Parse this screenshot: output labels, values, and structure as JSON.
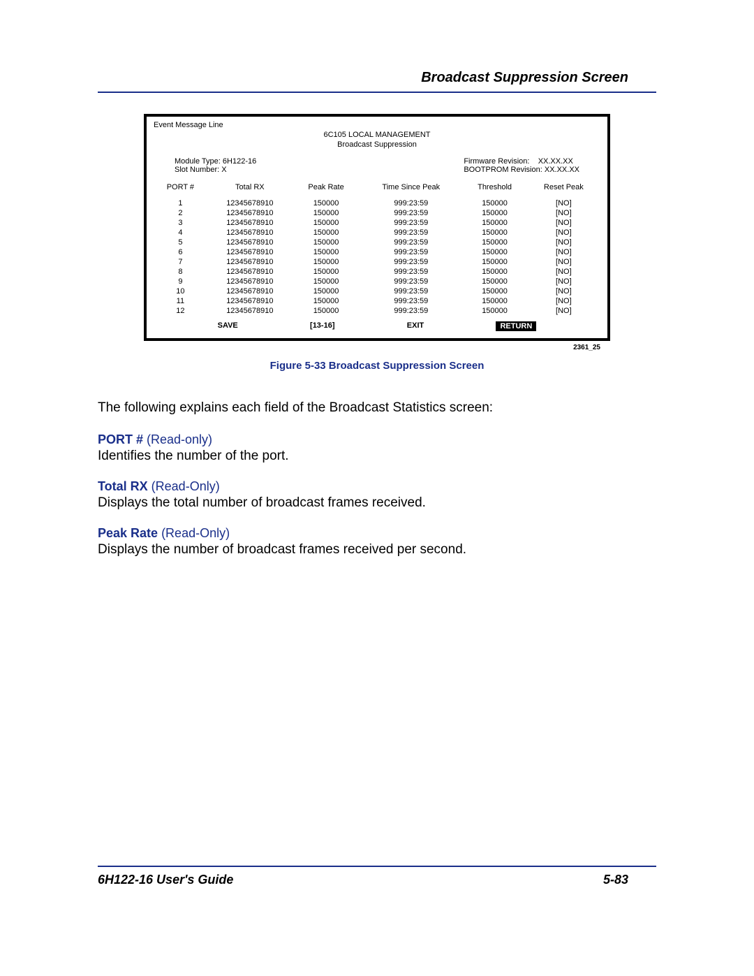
{
  "header": {
    "title": "Broadcast Suppression Screen"
  },
  "screen": {
    "event_line": "Event Message Line",
    "mgmt_title": "6C105 LOCAL MANAGEMENT",
    "subtitle": "Broadcast Suppression",
    "module_type_label": "Module Type:",
    "module_type_value": "6H122-16",
    "slot_label": "Slot Number:",
    "slot_value": "X",
    "fw_label": "Firmware Revision:",
    "fw_value": "XX.XX.XX",
    "boot_label": "BOOTPROM Revision:",
    "boot_value": "XX.XX.XX",
    "columns": [
      "PORT #",
      "Total RX",
      "Peak Rate",
      "Time Since Peak",
      "Threshold",
      "Reset Peak"
    ],
    "rows": [
      {
        "port": "1",
        "total": "12345678910",
        "peak": "150000",
        "time": "999:23:59",
        "thresh": "150000",
        "reset": "[NO]"
      },
      {
        "port": "2",
        "total": "12345678910",
        "peak": "150000",
        "time": "999:23:59",
        "thresh": "150000",
        "reset": "[NO]"
      },
      {
        "port": "3",
        "total": "12345678910",
        "peak": "150000",
        "time": "999:23:59",
        "thresh": "150000",
        "reset": "[NO]"
      },
      {
        "port": "4",
        "total": "12345678910",
        "peak": "150000",
        "time": "999:23:59",
        "thresh": "150000",
        "reset": "[NO]"
      },
      {
        "port": "5",
        "total": "12345678910",
        "peak": "150000",
        "time": "999:23:59",
        "thresh": "150000",
        "reset": "[NO]"
      },
      {
        "port": "6",
        "total": "12345678910",
        "peak": "150000",
        "time": "999:23:59",
        "thresh": "150000",
        "reset": "[NO]"
      },
      {
        "port": "7",
        "total": "12345678910",
        "peak": "150000",
        "time": "999:23:59",
        "thresh": "150000",
        "reset": "[NO]"
      },
      {
        "port": "8",
        "total": "12345678910",
        "peak": "150000",
        "time": "999:23:59",
        "thresh": "150000",
        "reset": "[NO]"
      },
      {
        "port": "9",
        "total": "12345678910",
        "peak": "150000",
        "time": "999:23:59",
        "thresh": "150000",
        "reset": "[NO]"
      },
      {
        "port": "10",
        "total": "12345678910",
        "peak": "150000",
        "time": "999:23:59",
        "thresh": "150000",
        "reset": "[NO]"
      },
      {
        "port": "11",
        "total": "12345678910",
        "peak": "150000",
        "time": "999:23:59",
        "thresh": "150000",
        "reset": "[NO]"
      },
      {
        "port": "12",
        "total": "12345678910",
        "peak": "150000",
        "time": "999:23:59",
        "thresh": "150000",
        "reset": "[NO]"
      }
    ],
    "footer": {
      "save": "SAVE",
      "range": "[13-16]",
      "exit": "EXIT",
      "return": "RETURN"
    },
    "fig_id": "2361_25"
  },
  "figure_caption": "Figure 5-33    Broadcast Suppression Screen",
  "intro": "The following explains each ﬁeld of the Broadcast Statistics screen:",
  "fields": [
    {
      "label": "PORT #",
      "mode": "(Read-only)",
      "desc": "Identiﬁes the number of the port."
    },
    {
      "label": "Total RX",
      "mode": "(Read-Only)",
      "desc": "Displays the total number of broadcast frames received."
    },
    {
      "label": "Peak Rate",
      "mode": "(Read-Only)",
      "desc": "Displays the number of broadcast frames received per second."
    }
  ],
  "footer": {
    "guide": "6H122-16 User's Guide",
    "page": "5-83"
  }
}
